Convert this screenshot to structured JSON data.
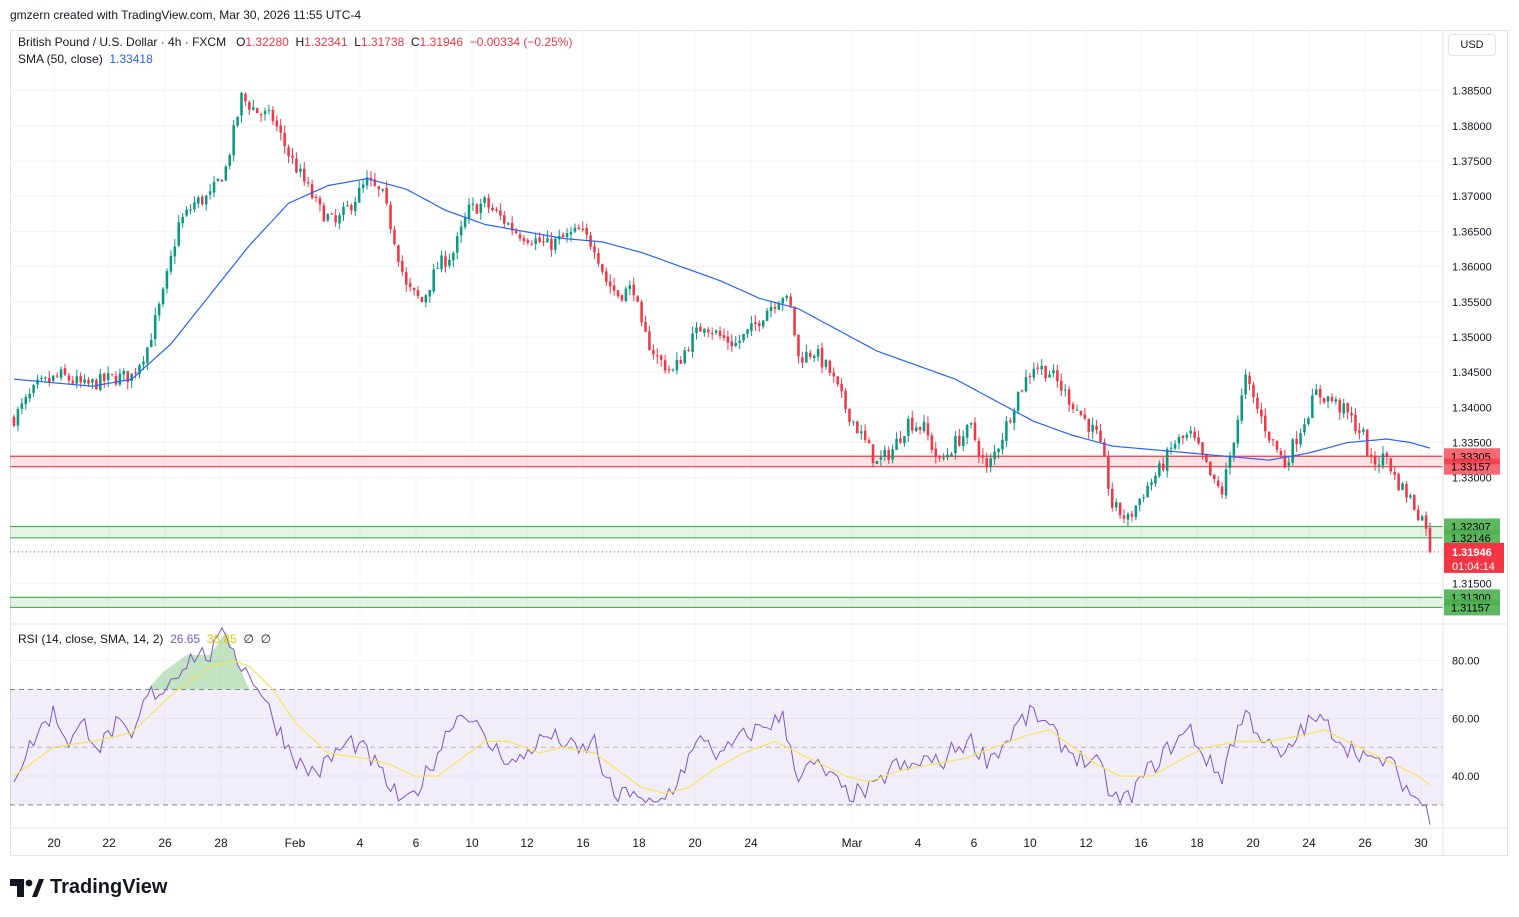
{
  "credit": "gmzern created with TradingView.com, Mar 30, 2026 11:55 UTC-4",
  "legend": {
    "symbol": "British Pound / U.S. Dollar · 4h · FXCM",
    "o_label": "O",
    "o": "1.32280",
    "h_label": "H",
    "h": "1.32341",
    "l_label": "L",
    "l": "1.31738",
    "c_label": "C",
    "c": "1.31946",
    "change": "−0.00334 (−0.25%)",
    "sma_label": "SMA (50, close)",
    "sma_value": "1.33418"
  },
  "currency": "USD",
  "rsi_legend": {
    "label": "RSI (14, close, SMA, 14, 2)",
    "rsi": "26.65",
    "rsi_ma": "36.85",
    "extra1": "∅",
    "extra2": "∅"
  },
  "brand": "TradingView",
  "colors": {
    "up": "#089981",
    "down": "#f23645",
    "sma": "#2962ff",
    "rsi": "#7e57c2",
    "rsi_ma": "#f5e35b",
    "resistance": "#f23645",
    "support": "#4caf50"
  },
  "chart_data": [
    {
      "type": "candlestick",
      "interval": "4h",
      "ylim": [
        1.3095,
        1.3885
      ],
      "y_ticks": [
        "1.38500",
        "1.38000",
        "1.37500",
        "1.37000",
        "1.36500",
        "1.36000",
        "1.35500",
        "1.35000",
        "1.34500",
        "1.34000",
        "1.33500",
        "1.33000",
        "1.31500"
      ],
      "x_ticks": [
        "20",
        "22",
        "26",
        "28",
        "Feb",
        "4",
        "6",
        "10",
        "12",
        "16",
        "18",
        "20",
        "24",
        "Mar",
        "4",
        "6",
        "10",
        "12",
        "16",
        "18",
        "20",
        "24",
        "26",
        "30"
      ],
      "price_levels": [
        {
          "label": "1.33305",
          "value": 1.33305,
          "kind": "resistance"
        },
        {
          "label": "1.33157",
          "value": 1.33157,
          "kind": "resistance"
        },
        {
          "label": "1.32307",
          "value": 1.32307,
          "kind": "support"
        },
        {
          "label": "1.32146",
          "value": 1.32146,
          "kind": "support"
        },
        {
          "label": "1.31300",
          "value": 1.313,
          "kind": "support"
        },
        {
          "label": "1.31157",
          "value": 1.31157,
          "kind": "support"
        }
      ],
      "last_price": {
        "label": "1.31946",
        "value": 1.31946,
        "countdown": "01:04:14"
      },
      "close_anchors": [
        [
          0,
          1.3385
        ],
        [
          6,
          1.343
        ],
        [
          12,
          1.3445
        ],
        [
          18,
          1.343
        ],
        [
          24,
          1.344
        ],
        [
          30,
          1.3445
        ],
        [
          34,
          1.3485
        ],
        [
          38,
          1.356
        ],
        [
          42,
          1.366
        ],
        [
          46,
          1.369
        ],
        [
          50,
          1.37
        ],
        [
          54,
          1.374
        ],
        [
          58,
          1.384
        ],
        [
          62,
          1.382
        ],
        [
          66,
          1.381
        ],
        [
          70,
          1.376
        ],
        [
          74,
          1.372
        ],
        [
          78,
          1.368
        ],
        [
          82,
          1.366
        ],
        [
          86,
          1.369
        ],
        [
          90,
          1.372
        ],
        [
          94,
          1.37
        ],
        [
          97,
          1.364
        ],
        [
          100,
          1.357
        ],
        [
          104,
          1.355
        ],
        [
          108,
          1.36
        ],
        [
          112,
          1.362
        ],
        [
          116,
          1.368
        ],
        [
          120,
          1.369
        ],
        [
          124,
          1.367
        ],
        [
          128,
          1.365
        ],
        [
          132,
          1.364
        ],
        [
          136,
          1.363
        ],
        [
          140,
          1.364
        ],
        [
          144,
          1.365
        ],
        [
          148,
          1.363
        ],
        [
          151,
          1.358
        ],
        [
          154,
          1.356
        ],
        [
          158,
          1.357
        ],
        [
          160,
          1.351
        ],
        [
          164,
          1.347
        ],
        [
          168,
          1.345
        ],
        [
          172,
          1.349
        ],
        [
          176,
          1.352
        ],
        [
          180,
          1.35
        ],
        [
          184,
          1.349
        ],
        [
          188,
          1.351
        ],
        [
          192,
          1.354
        ],
        [
          196,
          1.356
        ],
        [
          198,
          1.354
        ],
        [
          200,
          1.347
        ],
        [
          204,
          1.348
        ],
        [
          208,
          1.345
        ],
        [
          212,
          1.34
        ],
        [
          216,
          1.336
        ],
        [
          220,
          1.332
        ],
        [
          224,
          1.334
        ],
        [
          228,
          1.338
        ],
        [
          232,
          1.337
        ],
        [
          236,
          1.332
        ],
        [
          240,
          1.335
        ],
        [
          244,
          1.337
        ],
        [
          248,
          1.331
        ],
        [
          252,
          1.336
        ],
        [
          256,
          1.342
        ],
        [
          260,
          1.346
        ],
        [
          264,
          1.345
        ],
        [
          268,
          1.342
        ],
        [
          272,
          1.339
        ],
        [
          276,
          1.336
        ],
        [
          278,
          1.332
        ],
        [
          280,
          1.326
        ],
        [
          284,
          1.324
        ],
        [
          288,
          1.328
        ],
        [
          292,
          1.331
        ],
        [
          296,
          1.335
        ],
        [
          300,
          1.336
        ],
        [
          302,
          1.334
        ],
        [
          306,
          1.329
        ],
        [
          308,
          1.328
        ],
        [
          310,
          1.333
        ],
        [
          314,
          1.344
        ],
        [
          316,
          1.341
        ],
        [
          320,
          1.336
        ],
        [
          324,
          1.332
        ],
        [
          328,
          1.337
        ],
        [
          332,
          1.342
        ],
        [
          336,
          1.341
        ],
        [
          340,
          1.339
        ],
        [
          344,
          1.336
        ],
        [
          346,
          1.332
        ],
        [
          350,
          1.333
        ],
        [
          352,
          1.33
        ],
        [
          356,
          1.327
        ],
        [
          358,
          1.325
        ],
        [
          360,
          1.3235
        ],
        [
          361,
          1.31946
        ]
      ],
      "sma50_anchors": [
        [
          0,
          1.344
        ],
        [
          20,
          1.343
        ],
        [
          30,
          1.344
        ],
        [
          40,
          1.349
        ],
        [
          50,
          1.356
        ],
        [
          60,
          1.363
        ],
        [
          70,
          1.369
        ],
        [
          80,
          1.3715
        ],
        [
          90,
          1.3725
        ],
        [
          100,
          1.371
        ],
        [
          110,
          1.368
        ],
        [
          120,
          1.366
        ],
        [
          130,
          1.365
        ],
        [
          140,
          1.364
        ],
        [
          150,
          1.3635
        ],
        [
          160,
          1.362
        ],
        [
          170,
          1.36
        ],
        [
          180,
          1.358
        ],
        [
          190,
          1.3555
        ],
        [
          200,
          1.354
        ],
        [
          210,
          1.351
        ],
        [
          220,
          1.348
        ],
        [
          230,
          1.346
        ],
        [
          240,
          1.344
        ],
        [
          250,
          1.341
        ],
        [
          260,
          1.338
        ],
        [
          270,
          1.336
        ],
        [
          280,
          1.3345
        ],
        [
          290,
          1.334
        ],
        [
          300,
          1.3335
        ],
        [
          310,
          1.333
        ],
        [
          320,
          1.3325
        ],
        [
          330,
          1.3335
        ],
        [
          340,
          1.335
        ],
        [
          350,
          1.3355
        ],
        [
          356,
          1.335
        ],
        [
          361,
          1.3342
        ]
      ]
    },
    {
      "type": "line",
      "name": "RSI (14, close, SMA, 14, 2)",
      "ylim": [
        22,
        92
      ],
      "y_ticks": [
        "80.00",
        "60.00",
        "40.00"
      ],
      "bands": {
        "upper": 70,
        "middle": 50,
        "lower": 30
      },
      "rsi_anchors": [
        [
          0,
          40
        ],
        [
          6,
          55
        ],
        [
          10,
          62
        ],
        [
          14,
          52
        ],
        [
          18,
          58
        ],
        [
          22,
          50
        ],
        [
          26,
          58
        ],
        [
          30,
          52
        ],
        [
          34,
          68
        ],
        [
          38,
          70
        ],
        [
          42,
          77
        ],
        [
          46,
          82
        ],
        [
          50,
          82
        ],
        [
          54,
          90
        ],
        [
          58,
          78
        ],
        [
          62,
          72
        ],
        [
          66,
          60
        ],
        [
          70,
          50
        ],
        [
          74,
          42
        ],
        [
          78,
          42
        ],
        [
          82,
          48
        ],
        [
          86,
          52
        ],
        [
          90,
          48
        ],
        [
          94,
          40
        ],
        [
          97,
          34
        ],
        [
          100,
          30
        ],
        [
          104,
          38
        ],
        [
          108,
          48
        ],
        [
          112,
          60
        ],
        [
          116,
          62
        ],
        [
          120,
          52
        ],
        [
          124,
          48
        ],
        [
          128,
          44
        ],
        [
          132,
          50
        ],
        [
          136,
          54
        ],
        [
          140,
          52
        ],
        [
          144,
          48
        ],
        [
          148,
          52
        ],
        [
          151,
          38
        ],
        [
          154,
          32
        ],
        [
          158,
          36
        ],
        [
          160,
          30
        ],
        [
          164,
          30
        ],
        [
          168,
          36
        ],
        [
          172,
          46
        ],
        [
          176,
          54
        ],
        [
          180,
          46
        ],
        [
          184,
          52
        ],
        [
          188,
          55
        ],
        [
          192,
          58
        ],
        [
          196,
          60
        ],
        [
          198,
          50
        ],
        [
          200,
          40
        ],
        [
          204,
          44
        ],
        [
          208,
          40
        ],
        [
          212,
          34
        ],
        [
          216,
          34
        ],
        [
          220,
          36
        ],
        [
          224,
          44
        ],
        [
          228,
          42
        ],
        [
          232,
          46
        ],
        [
          236,
          44
        ],
        [
          240,
          50
        ],
        [
          244,
          52
        ],
        [
          248,
          46
        ],
        [
          252,
          50
        ],
        [
          256,
          58
        ],
        [
          260,
          62
        ],
        [
          264,
          56
        ],
        [
          268,
          50
        ],
        [
          272,
          46
        ],
        [
          276,
          44
        ],
        [
          278,
          40
        ],
        [
          280,
          32
        ],
        [
          284,
          32
        ],
        [
          288,
          40
        ],
        [
          292,
          46
        ],
        [
          296,
          52
        ],
        [
          300,
          56
        ],
        [
          302,
          50
        ],
        [
          306,
          42
        ],
        [
          308,
          40
        ],
        [
          310,
          50
        ],
        [
          314,
          62
        ],
        [
          316,
          58
        ],
        [
          320,
          50
        ],
        [
          324,
          46
        ],
        [
          328,
          56
        ],
        [
          332,
          60
        ],
        [
          336,
          56
        ],
        [
          340,
          50
        ],
        [
          344,
          48
        ],
        [
          346,
          44
        ],
        [
          350,
          46
        ],
        [
          352,
          42
        ],
        [
          356,
          34
        ],
        [
          358,
          32
        ],
        [
          360,
          28
        ],
        [
          361,
          26.65
        ]
      ],
      "rsi_ma_anchors": [
        [
          0,
          40
        ],
        [
          10,
          50
        ],
        [
          20,
          52
        ],
        [
          30,
          55
        ],
        [
          40,
          68
        ],
        [
          50,
          78
        ],
        [
          56,
          80
        ],
        [
          60,
          78
        ],
        [
          66,
          70
        ],
        [
          72,
          58
        ],
        [
          80,
          48
        ],
        [
          90,
          46
        ],
        [
          96,
          44
        ],
        [
          102,
          40
        ],
        [
          108,
          40
        ],
        [
          114,
          46
        ],
        [
          120,
          52
        ],
        [
          126,
          52
        ],
        [
          134,
          48
        ],
        [
          140,
          50
        ],
        [
          148,
          48
        ],
        [
          154,
          42
        ],
        [
          160,
          36
        ],
        [
          166,
          34
        ],
        [
          172,
          36
        ],
        [
          178,
          42
        ],
        [
          186,
          48
        ],
        [
          194,
          52
        ],
        [
          200,
          48
        ],
        [
          206,
          44
        ],
        [
          212,
          40
        ],
        [
          218,
          38
        ],
        [
          226,
          42
        ],
        [
          234,
          44
        ],
        [
          242,
          46
        ],
        [
          250,
          50
        ],
        [
          258,
          54
        ],
        [
          264,
          56
        ],
        [
          270,
          50
        ],
        [
          276,
          44
        ],
        [
          282,
          40
        ],
        [
          290,
          40
        ],
        [
          298,
          46
        ],
        [
          304,
          50
        ],
        [
          312,
          52
        ],
        [
          320,
          52
        ],
        [
          328,
          54
        ],
        [
          334,
          56
        ],
        [
          340,
          52
        ],
        [
          346,
          48
        ],
        [
          352,
          44
        ],
        [
          358,
          40
        ],
        [
          361,
          36.85
        ]
      ]
    }
  ]
}
